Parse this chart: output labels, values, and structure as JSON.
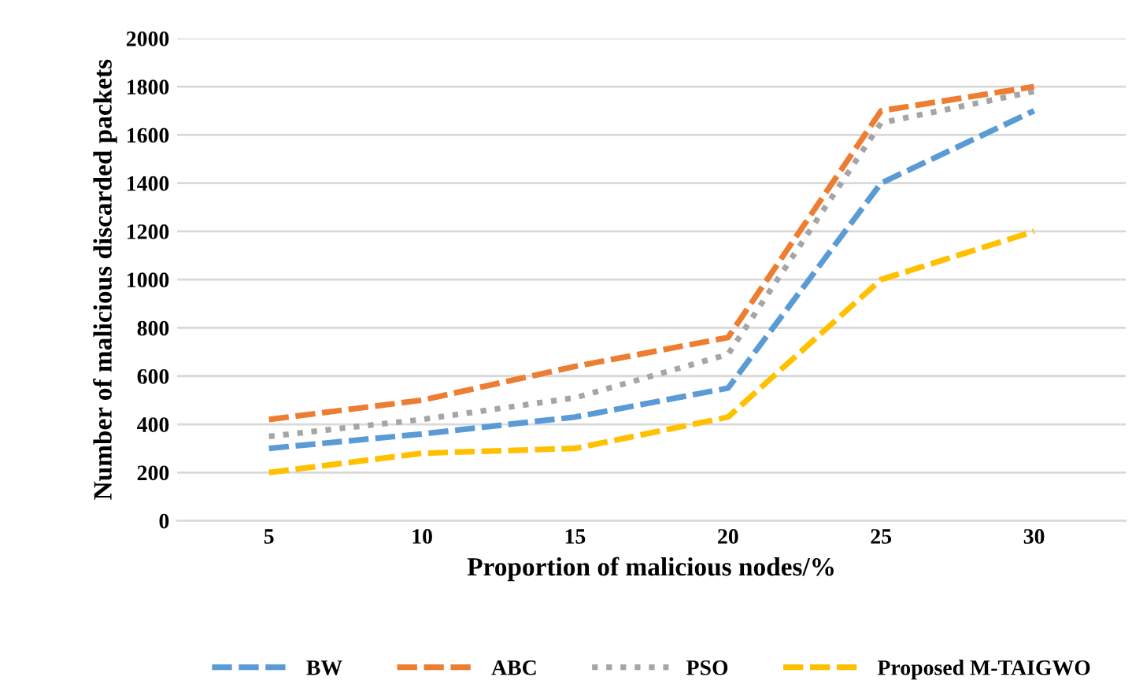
{
  "chart_data": {
    "type": "line",
    "xlabel": "Proportion of malicious nodes/%",
    "ylabel": "Number of malicious discarded packets",
    "categories": [
      "5",
      "10",
      "15",
      "20",
      "25",
      "30"
    ],
    "series": [
      {
        "name": "BW",
        "color": "#5b9bd5",
        "line_style": "dashed",
        "values": [
          300,
          360,
          430,
          550,
          1400,
          1700
        ]
      },
      {
        "name": "ABC",
        "color": "#ed7d31",
        "line_style": "dashed",
        "values": [
          420,
          500,
          640,
          760,
          1700,
          1800
        ]
      },
      {
        "name": "PSO",
        "color": "#a5a5a5",
        "line_style": "dotted",
        "values": [
          350,
          420,
          510,
          690,
          1650,
          1780
        ]
      },
      {
        "name": "Proposed M-TAIGWO",
        "color": "#ffc000",
        "line_style": "dashed",
        "values": [
          200,
          280,
          300,
          430,
          1000,
          1200
        ]
      }
    ],
    "ylim": [
      0,
      2000
    ],
    "yticks": [
      0,
      200,
      400,
      600,
      800,
      1000,
      1200,
      1400,
      1600,
      1800,
      2000
    ],
    "grid": "y",
    "legend": "bottom",
    "marker": "none"
  }
}
